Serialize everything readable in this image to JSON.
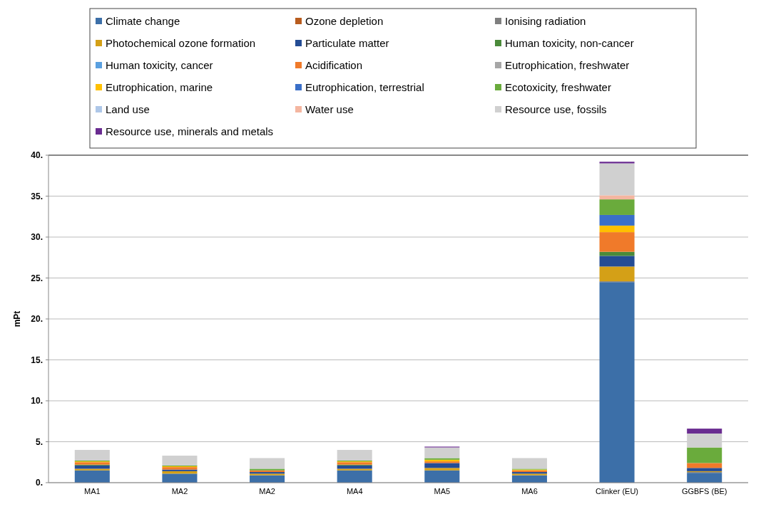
{
  "chart_data": {
    "type": "bar",
    "stacked": true,
    "ylabel": "mPt",
    "categories": [
      "MA1",
      "MA2",
      "MA2",
      "MA4",
      "MA5",
      "MA6",
      "Clinker  (EU)",
      "GGBFS (BE)"
    ],
    "ylim": [
      0,
      40
    ],
    "yticks": [
      {
        "value": 0,
        "label": "0."
      },
      {
        "value": 5,
        "label": "5."
      },
      {
        "value": 10,
        "label": "10."
      },
      {
        "value": 15,
        "label": "15."
      },
      {
        "value": 20,
        "label": "20."
      },
      {
        "value": 25,
        "label": "25."
      },
      {
        "value": 30,
        "label": "30."
      },
      {
        "value": 35,
        "label": "35."
      },
      {
        "value": 40,
        "label": "40."
      }
    ],
    "grid": "y",
    "legend": "top",
    "series": [
      {
        "name": "Climate change",
        "color": "#3c6fa8",
        "values": [
          1.5,
          1.1,
          0.9,
          1.5,
          1.5,
          0.9,
          24.5,
          1.2
        ]
      },
      {
        "name": "Ozone depletion",
        "color": "#b85c1e",
        "values": [
          null,
          null,
          null,
          null,
          null,
          null,
          null,
          null
        ]
      },
      {
        "name": "Ionising radiation",
        "color": "#7f7f7f",
        "values": [
          null,
          null,
          null,
          null,
          null,
          null,
          0.1,
          0.1
        ]
      },
      {
        "name": "Photochemical ozone formation",
        "color": "#d4a017",
        "values": [
          0.2,
          0.3,
          0.2,
          0.2,
          0.3,
          0.2,
          1.8,
          0.1
        ]
      },
      {
        "name": "Particulate matter",
        "color": "#244c94",
        "values": [
          0.4,
          0.2,
          0.2,
          0.4,
          0.6,
          0.2,
          1.3,
          0.4
        ]
      },
      {
        "name": "Human toxicity, non-cancer",
        "color": "#4b8a3a",
        "values": [
          0.1,
          null,
          null,
          0.1,
          null,
          null,
          0.5,
          null
        ]
      },
      {
        "name": "Human toxicity, cancer",
        "color": "#5aa0e0",
        "values": [
          null,
          null,
          null,
          null,
          null,
          null,
          null,
          null
        ]
      },
      {
        "name": "Acidification",
        "color": "#f07a2a",
        "values": [
          0.3,
          0.3,
          0.2,
          0.3,
          0.2,
          0.2,
          2.4,
          0.6
        ]
      },
      {
        "name": "Eutrophication, freshwater",
        "color": "#a6a6a6",
        "values": [
          null,
          null,
          null,
          null,
          null,
          null,
          null,
          null
        ]
      },
      {
        "name": "Eutrophication, marine",
        "color": "#ffc000",
        "values": [
          0.1,
          0.1,
          null,
          0.1,
          0.2,
          0.1,
          0.8,
          null
        ]
      },
      {
        "name": "Eutrophication, terrestrial",
        "color": "#3a6fc8",
        "values": [
          null,
          null,
          null,
          null,
          null,
          null,
          1.3,
          null
        ]
      },
      {
        "name": "Ecotoxicity, freshwater",
        "color": "#6aab3c",
        "values": [
          0.1,
          0.1,
          0.2,
          0.1,
          0.2,
          0.1,
          1.9,
          1.9
        ]
      },
      {
        "name": "Land use",
        "color": "#aec7e8",
        "values": [
          null,
          null,
          null,
          null,
          null,
          null,
          null,
          null
        ]
      },
      {
        "name": "Water use",
        "color": "#f4b6a0",
        "values": [
          null,
          null,
          null,
          null,
          null,
          null,
          0.5,
          null
        ]
      },
      {
        "name": "Resource use, fossils",
        "color": "#d0d0d0",
        "values": [
          1.3,
          1.2,
          1.3,
          1.3,
          1.3,
          1.3,
          3.9,
          1.7
        ]
      },
      {
        "name": "Resource use, minerals and metals",
        "color": "#6a2c91",
        "values": [
          null,
          null,
          null,
          null,
          0.1,
          null,
          0.2,
          0.6
        ]
      }
    ]
  }
}
